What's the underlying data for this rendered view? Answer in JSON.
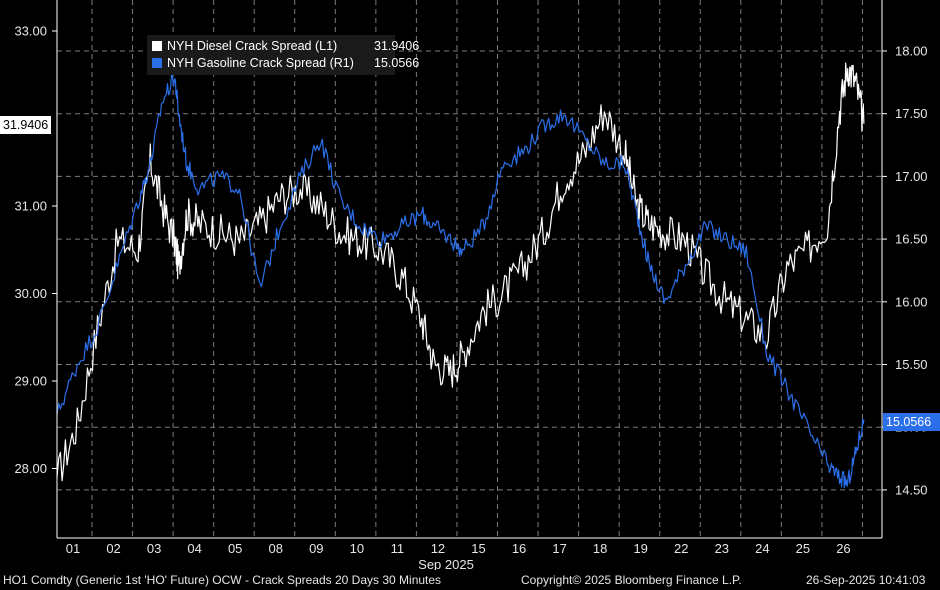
{
  "chart_data": {
    "type": "line",
    "xlabel": "Sep 2025",
    "x_ticks": [
      "01",
      "02",
      "03",
      "04",
      "05",
      "08",
      "09",
      "10",
      "11",
      "12",
      "15",
      "16",
      "17",
      "18",
      "19",
      "22",
      "23",
      "24",
      "25",
      "26"
    ],
    "y_left": {
      "ylim": [
        27.2,
        33.3
      ],
      "ticks": [
        "28.00",
        "29.00",
        "30.00",
        "31.00",
        "33.00"
      ]
    },
    "y_right": {
      "ylim": [
        14.2,
        18.3
      ],
      "ticks": [
        "14.50",
        "15.00",
        "15.50",
        "16.00",
        "16.50",
        "17.00",
        "17.50",
        "18.00"
      ]
    },
    "grid": true,
    "legend_position": "top-left",
    "series": [
      {
        "name": "NYH Diesel Crack Spread (L1)",
        "last_value": "31.9406",
        "color": "#ffffff",
        "axis": "left",
        "x": [
          0.0,
          0.5,
          1.0,
          1.5,
          2.0,
          2.3,
          2.6,
          2.9,
          3.0,
          3.2,
          3.5,
          4.0,
          4.5,
          5.0,
          5.5,
          6.0,
          6.5,
          7.0,
          7.5,
          8.0,
          8.5,
          9.0,
          9.3,
          9.7,
          10.0,
          10.5,
          11.0,
          11.5,
          12.0,
          12.5,
          13.0,
          13.5,
          14.0,
          14.3,
          14.6,
          15.0,
          15.5,
          16.0,
          16.5,
          17.0,
          17.5,
          18.0,
          18.5,
          19.0,
          19.3,
          19.5,
          19.7,
          19.9
        ],
        "values": [
          27.9,
          28.5,
          29.6,
          30.6,
          30.5,
          31.5,
          31.0,
          30.6,
          30.3,
          30.9,
          30.8,
          30.7,
          30.6,
          30.8,
          31.1,
          31.2,
          31.0,
          30.7,
          30.6,
          30.5,
          30.2,
          29.7,
          29.2,
          29.1,
          29.3,
          29.8,
          30.0,
          30.3,
          30.7,
          31.3,
          31.6,
          32.1,
          31.6,
          31.0,
          30.8,
          30.7,
          30.6,
          30.2,
          29.9,
          29.7,
          29.5,
          30.3,
          30.5,
          30.8,
          32.1,
          32.6,
          32.4,
          31.94
        ]
      },
      {
        "name": "NYH Gasoline Crack Spread (R1)",
        "last_value": "15.0566",
        "color": "#2b6fe8",
        "axis": "right",
        "x": [
          0.0,
          0.5,
          1.0,
          1.5,
          2.0,
          2.3,
          2.6,
          2.9,
          3.0,
          3.2,
          3.5,
          4.0,
          4.5,
          5.0,
          5.5,
          6.0,
          6.5,
          7.0,
          7.5,
          8.0,
          8.5,
          9.0,
          9.3,
          9.7,
          10.0,
          10.5,
          11.0,
          11.5,
          12.0,
          12.5,
          13.0,
          13.5,
          14.0,
          14.3,
          14.6,
          15.0,
          15.5,
          16.0,
          16.5,
          17.0,
          17.5,
          18.0,
          18.5,
          19.0,
          19.3,
          19.5,
          19.7,
          19.9
        ],
        "values": [
          15.1,
          15.5,
          15.8,
          16.3,
          16.8,
          17.1,
          17.6,
          17.8,
          17.5,
          17.1,
          16.9,
          17.0,
          16.9,
          16.1,
          16.6,
          17.0,
          17.3,
          16.8,
          16.6,
          16.5,
          16.6,
          16.7,
          16.6,
          16.5,
          16.4,
          16.6,
          17.1,
          17.2,
          17.4,
          17.5,
          17.3,
          17.1,
          17.1,
          16.7,
          16.3,
          16.0,
          16.3,
          16.6,
          16.5,
          16.4,
          15.6,
          15.3,
          15.0,
          14.7,
          14.6,
          14.55,
          14.8,
          15.06
        ]
      }
    ]
  },
  "footer": {
    "left": "HO1 Comdty (Generic 1st 'HO' Future) OCW - Crack Spreads 20 Days 30 Minutes",
    "center": "Copyright© 2025 Bloomberg Finance L.P.",
    "right": "26-Sep-2025 10:41:03"
  },
  "colors": {
    "background": "#000000",
    "diesel": "#ffffff",
    "gasoline": "#2b6fe8",
    "tag_right": "#2b6fe8",
    "tag_left": "#ffffff"
  }
}
